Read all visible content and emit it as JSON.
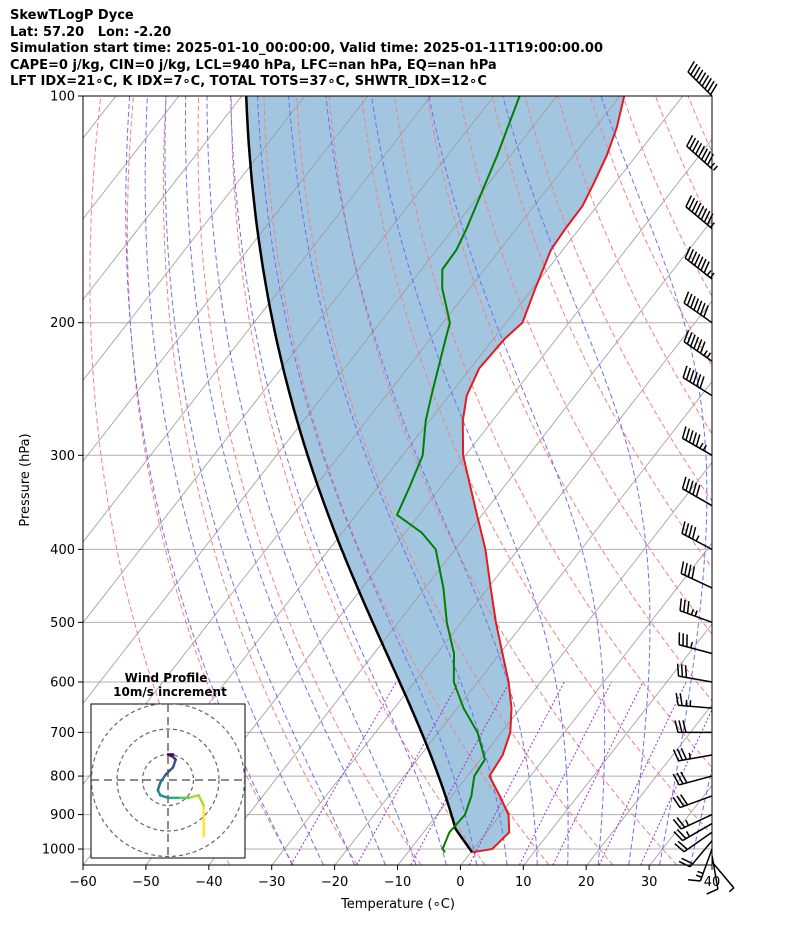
{
  "header": {
    "line1": "SkewTLogP Dyce",
    "line2": "Lat: 57.20   Lon: -2.20",
    "line3": "Simulation start time: 2025-01-10_00:00:00, Valid time: 2025-01-11T19:00:00.00",
    "line4": "CAPE=0 j/kg, CIN=0 j/kg, LCL=940 hPa, LFC=nan hPa, EQ=nan hPa",
    "line5": "LFT IDX=21∘C, K IDX=7∘C, TOTAL TOTS=37∘C, SHWTR_IDX=12∘C"
  },
  "chart_data": {
    "type": "line",
    "subtype": "skew-t log-p",
    "xlabel": "Temperature (∘C)",
    "ylabel": "Pressure (hPa)",
    "xlim": [
      -60,
      40
    ],
    "ylim": [
      1050,
      100
    ],
    "y_scale": "log",
    "x_ticks": [
      -60,
      -50,
      -40,
      -30,
      -20,
      -10,
      0,
      10,
      20,
      30,
      40
    ],
    "x_tick_labels": [
      "−60",
      "−50",
      "−40",
      "−30",
      "−20",
      "−10",
      "0",
      "10",
      "20",
      "30",
      "40"
    ],
    "y_ticks": [
      1000,
      900,
      800,
      700,
      600,
      500,
      400,
      300,
      200,
      100
    ],
    "grid": true,
    "colors": {
      "temperature": "#e41a1c",
      "dewpoint": "#008000",
      "parcel": "#000000",
      "shade": "#a3c6e0",
      "dry_adiabats": "#f08080",
      "moist_adiabats": "#6f6ff0",
      "mixing_ratio": "#9932cc"
    },
    "series": [
      {
        "key": "temperature",
        "pressure": [
          1010,
          1000,
          950,
          900,
          850,
          800,
          750,
          700,
          650,
          600,
          550,
          500,
          450,
          400,
          350,
          300,
          270,
          250,
          230,
          210,
          200,
          180,
          160,
          150,
          140,
          130,
          120,
          110,
          100
        ],
        "values": [
          0.2,
          3,
          3.6,
          1.3,
          -2.4,
          -6.5,
          -7,
          -8.6,
          -11.4,
          -15.1,
          -19.6,
          -24.5,
          -29.6,
          -35.2,
          -42.3,
          -50.4,
          -54.7,
          -57.2,
          -58.6,
          -58.2,
          -57.4,
          -59.6,
          -61.9,
          -62.2,
          -62.3,
          -63.4,
          -64.7,
          -66.6,
          -69.3
        ]
      },
      {
        "key": "dewpoint",
        "pressure": [
          1010,
          1000,
          950,
          900,
          850,
          800,
          760,
          700,
          650,
          600,
          550,
          500,
          450,
          400,
          380,
          360,
          330,
          300,
          270,
          250,
          230,
          210,
          200,
          180,
          170,
          160,
          150,
          140,
          120,
          100
        ],
        "values": [
          -4.1,
          -4.9,
          -5.9,
          -5.6,
          -6.9,
          -8.9,
          -9.3,
          -13.8,
          -19,
          -23.8,
          -27.3,
          -32.3,
          -37.1,
          -43.1,
          -47.4,
          -53.5,
          -55,
          -56.8,
          -60.6,
          -62.8,
          -65.1,
          -67.6,
          -68.9,
          -74.4,
          -76.7,
          -76.9,
          -77.9,
          -79.2,
          -82.1,
          -85.9
        ]
      }
    ],
    "wind_barbs": {
      "pressure": [
        1040,
        1020,
        1000,
        975,
        950,
        925,
        900,
        850,
        800,
        750,
        700,
        650,
        600,
        550,
        500,
        450,
        400,
        350,
        300,
        250,
        225,
        200,
        175,
        150,
        125,
        100
      ],
      "speed_kt": [
        5,
        12,
        18,
        20,
        22,
        24,
        26,
        30,
        32,
        34,
        30,
        28,
        30,
        33,
        38,
        42,
        46,
        52,
        58,
        62,
        68,
        72,
        78,
        85,
        88,
        92
      ],
      "direction_deg": [
        140,
        170,
        200,
        220,
        235,
        240,
        245,
        250,
        255,
        260,
        270,
        275,
        280,
        285,
        290,
        295,
        298,
        300,
        300,
        302,
        305,
        305,
        308,
        310,
        312,
        315
      ]
    },
    "inset": {
      "title_line1": "Wind Profile",
      "title_line2": "10m/s increment",
      "rings_ms": [
        10,
        20,
        30
      ],
      "u": [
        14,
        14,
        14,
        12,
        8,
        5,
        4,
        2,
        0,
        -3,
        -4,
        -3,
        -1,
        2,
        3,
        2,
        0,
        2
      ],
      "v": [
        -22,
        -18,
        -10,
        -6,
        -7,
        -7,
        -7,
        -7,
        -7,
        -6,
        -4,
        -1,
        2,
        5,
        8,
        9,
        10,
        10
      ],
      "colormap": "viridis"
    }
  }
}
